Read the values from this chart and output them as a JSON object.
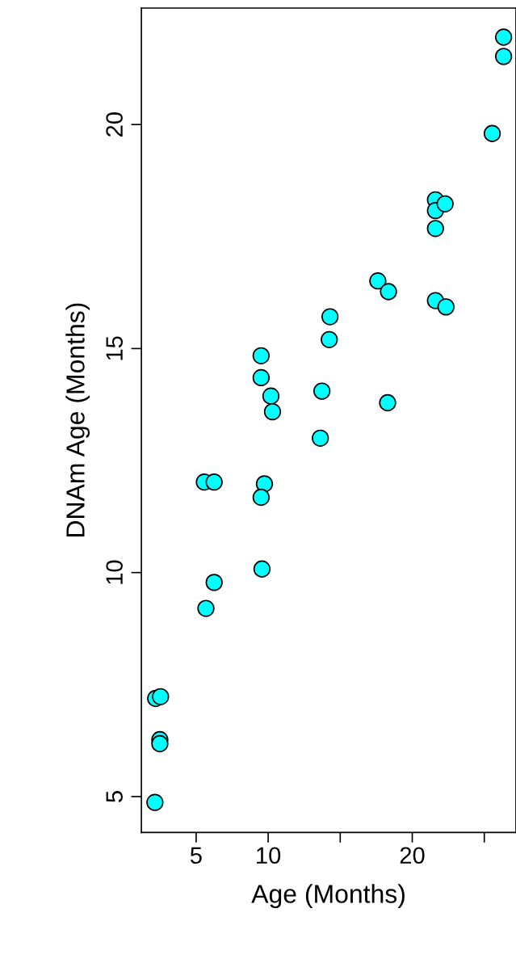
{
  "chart_data": {
    "type": "scatter",
    "xlabel": "Age (Months)",
    "ylabel": "DNAm Age (Months)",
    "x": [
      2.14,
      2.19,
      2.53,
      2.48,
      2.48,
      5.68,
      6.25,
      5.57,
      6.25,
      9.51,
      9.51,
      10.19,
      10.3,
      9.74,
      9.51,
      9.57,
      13.62,
      13.73,
      14.24,
      14.29,
      17.61,
      18.35,
      18.29,
      21.61,
      21.61,
      21.61,
      22.28,
      21.61,
      22.34,
      25.55,
      26.34,
      26.34
    ],
    "series": [
      {
        "color": "#00ffff",
        "values": [
          4.87,
          7.19,
          7.23,
          6.27,
          6.18,
          9.2,
          9.78,
          12.02,
          12.02,
          14.84,
          14.35,
          13.94,
          13.59,
          11.98,
          11.68,
          10.08,
          13.0,
          14.05,
          15.2,
          15.71,
          16.51,
          16.27,
          13.79,
          18.32,
          18.08,
          17.68,
          18.23,
          16.07,
          15.93,
          19.8,
          21.95,
          21.52
        ]
      }
    ],
    "xlim": [
      1.2,
      27.2
    ],
    "ylim": [
      4.2,
      22.6
    ],
    "xticks": [
      5,
      10,
      {
        "value": 15,
        "label": null
      },
      20,
      {
        "value": 25,
        "label": null
      }
    ],
    "yticks": [
      5,
      10,
      15,
      20
    ],
    "marker": "circle",
    "grid": false,
    "legend": false
  }
}
